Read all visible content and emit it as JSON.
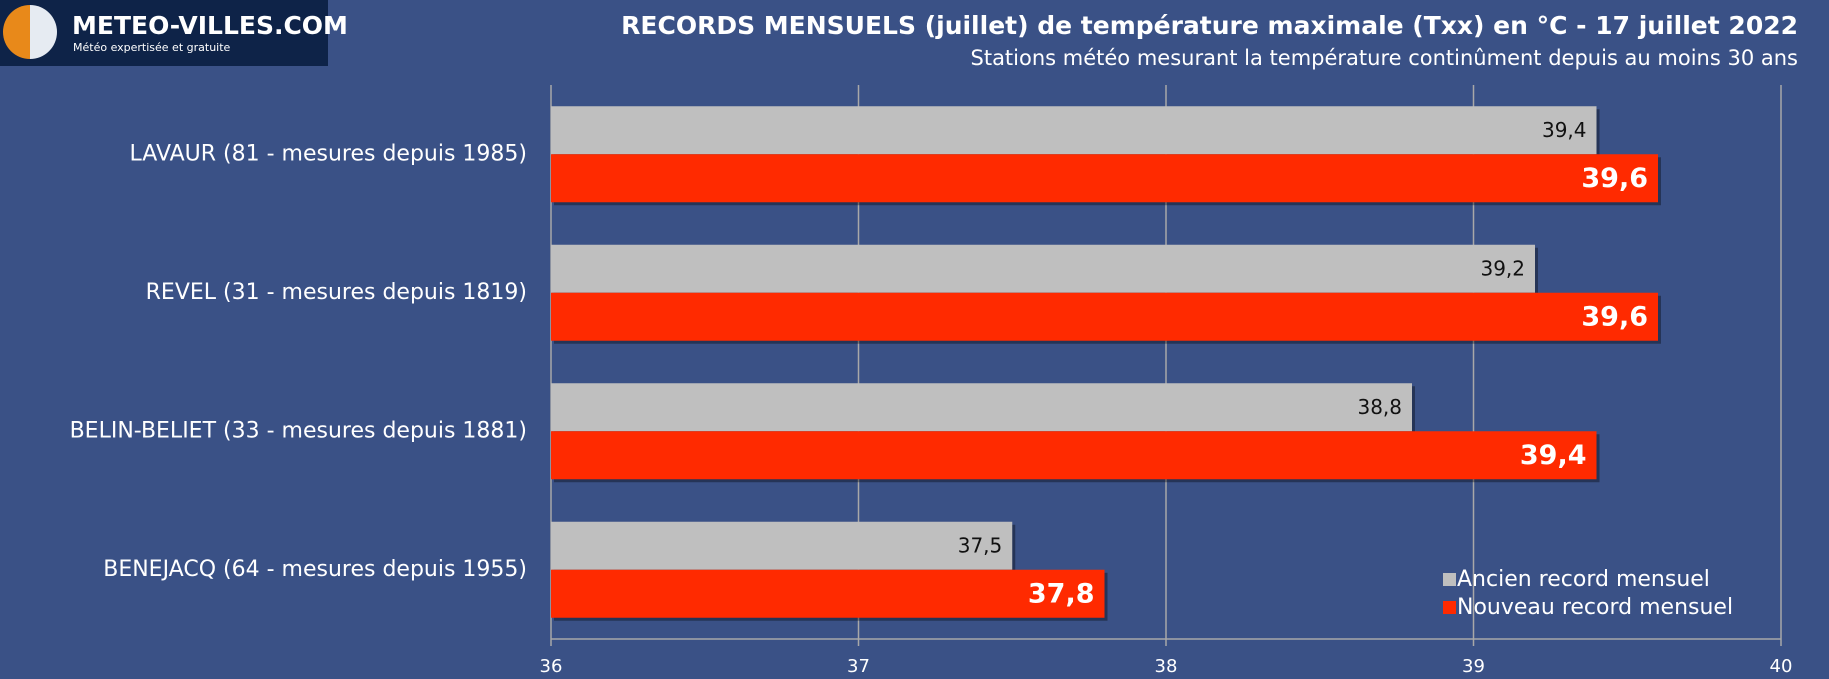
{
  "logo": {
    "name": "METEO-VILLES.COM",
    "tagline": "Météo expertisée et gratuite"
  },
  "chart_data": {
    "type": "hbar",
    "title": "RECORDS MENSUELS (juillet) de température maximale (Txx) en °C - 17 juillet 2022",
    "subtitle": "Stations météo mesurant la température continûment depuis au moins 30 ans",
    "categories": [
      "LAVAUR (81 - mesures depuis 1985)",
      "REVEL (31 - mesures depuis 1819)",
      "BELIN-BELIET (33 - mesures depuis 1881)",
      "BENEJACQ (64 - mesures depuis 1955)"
    ],
    "series": [
      {
        "name": "Ancien record mensuel",
        "color": "#bfbfbf",
        "values": [
          39.4,
          39.2,
          38.8,
          37.5
        ],
        "value_labels": [
          "39,4",
          "39,2",
          "38,8",
          "37,5"
        ]
      },
      {
        "name": "Nouveau record mensuel",
        "color": "#ff2a00",
        "values": [
          39.6,
          39.6,
          39.4,
          37.8
        ],
        "value_labels": [
          "39,6",
          "39,6",
          "39,4",
          "37,8"
        ]
      }
    ],
    "xlim": [
      36,
      40
    ],
    "xticks": [
      36,
      37,
      38,
      39,
      40
    ],
    "grid": true,
    "legend": "bottom-right"
  }
}
